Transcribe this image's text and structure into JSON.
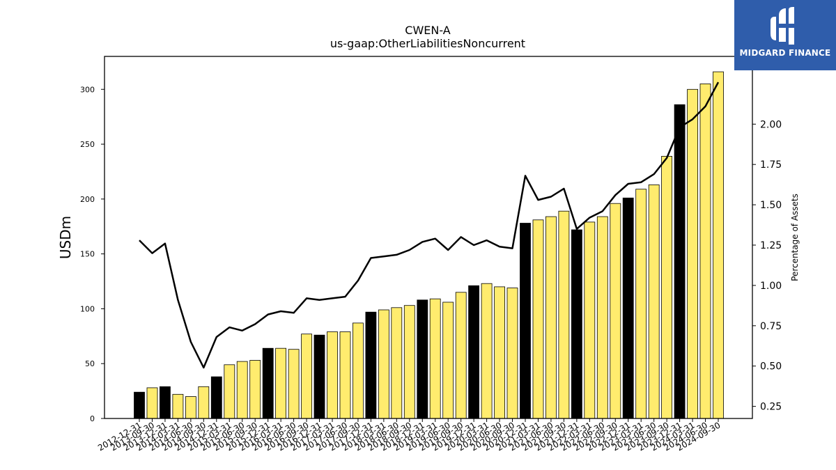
{
  "chart_data": {
    "type": "bar",
    "title": "CWEN-A",
    "subtitle": "us-gaap:OtherLiabilitiesNoncurrent",
    "ylabel": "USDm",
    "y2label": "Percentage of Assets",
    "ylim": [
      0,
      330
    ],
    "y2lim": [
      0.175,
      2.42
    ],
    "yticks": [
      0,
      50,
      100,
      150,
      200,
      250,
      300
    ],
    "y2ticks": [
      "0.25",
      "0.50",
      "0.75",
      "1.00",
      "1.25",
      "1.50",
      "1.75",
      "2.00"
    ],
    "categories": [
      "2012-12-31",
      "2013-09-30",
      "2013-12-31",
      "2014-03-31",
      "2014-06-30",
      "2014-09-30",
      "2014-12-31",
      "2015-03-31",
      "2015-06-30",
      "2015-09-30",
      "2015-12-31",
      "2016-03-31",
      "2016-06-30",
      "2016-09-30",
      "2016-12-31",
      "2017-03-31",
      "2017-06-30",
      "2017-09-30",
      "2017-12-31",
      "2018-03-31",
      "2018-06-30",
      "2018-09-30",
      "2018-12-31",
      "2019-03-31",
      "2019-06-30",
      "2019-09-30",
      "2019-12-31",
      "2020-03-31",
      "2020-06-30",
      "2020-09-30",
      "2020-12-31",
      "2021-03-31",
      "2021-06-30",
      "2021-09-30",
      "2021-12-31",
      "2022-03-31",
      "2022-06-30",
      "2022-09-30",
      "2022-12-31",
      "2023-03-31",
      "2023-06-30",
      "2023-09-30",
      "2023-12-31",
      "2024-03-31",
      "2024-06-30",
      "2024-09-30"
    ],
    "values": [
      24,
      28,
      29,
      22,
      20,
      29,
      38,
      49,
      52,
      53,
      64,
      64,
      63,
      77,
      76,
      79,
      79,
      87,
      97,
      99,
      101,
      103,
      108,
      109,
      106,
      115,
      121,
      123,
      120,
      119,
      178,
      181,
      184,
      189,
      172,
      179,
      184,
      196,
      201,
      209,
      213,
      239,
      286,
      300,
      305,
      316
    ],
    "year_end": [
      true,
      false,
      true,
      false,
      false,
      false,
      true,
      false,
      false,
      false,
      true,
      false,
      false,
      false,
      true,
      false,
      false,
      false,
      true,
      false,
      false,
      false,
      true,
      false,
      false,
      false,
      true,
      false,
      false,
      false,
      true,
      false,
      false,
      false,
      true,
      false,
      false,
      false,
      true,
      false,
      false,
      false,
      true,
      false,
      false,
      false
    ],
    "pct_of_assets": [
      1.28,
      1.2,
      1.26,
      0.91,
      0.65,
      0.49,
      0.68,
      0.74,
      0.72,
      0.76,
      0.82,
      0.84,
      0.83,
      0.92,
      0.91,
      0.92,
      0.93,
      1.03,
      1.17,
      1.18,
      1.19,
      1.22,
      1.27,
      1.29,
      1.22,
      1.3,
      1.25,
      1.28,
      1.24,
      1.23,
      1.68,
      1.53,
      1.55,
      1.6,
      1.35,
      1.42,
      1.46,
      1.56,
      1.63,
      1.64,
      1.69,
      1.79,
      1.98,
      2.03,
      2.11,
      2.26
    ],
    "colors": {
      "year_end": "#000000",
      "quarter": "#ffec6e",
      "line": "#000000"
    },
    "grid": false
  },
  "logo": {
    "text": "MIDGARD FINANCE",
    "mark": "midgard-logo-mark"
  }
}
